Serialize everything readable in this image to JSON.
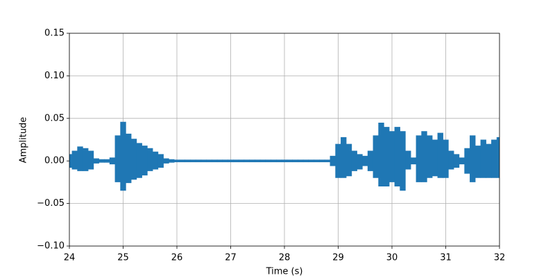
{
  "chart_data": {
    "type": "waveform",
    "xlabel": "Time (s)",
    "ylabel": "Amplitude",
    "color": "#1f77b4",
    "grid": true,
    "xlim": [
      24,
      32
    ],
    "xticks": [
      24,
      25,
      26,
      27,
      28,
      29,
      30,
      31,
      32
    ],
    "ylim": [
      -0.1,
      0.15
    ],
    "yticks": [
      {
        "value": -0.1,
        "label": "−0.10"
      },
      {
        "value": -0.05,
        "label": "−0.05"
      },
      {
        "value": 0,
        "label": "0.00"
      },
      0.05,
      {
        "value": 0.1,
        "label": "0.10"
      },
      0.15
    ],
    "x": [
      24.0,
      24.1,
      24.2,
      24.3,
      24.4,
      24.5,
      24.6,
      24.7,
      24.8,
      24.9,
      25.0,
      25.1,
      25.2,
      25.3,
      25.4,
      25.5,
      25.6,
      25.7,
      25.8,
      25.9,
      26.0,
      26.1,
      26.2,
      26.3,
      26.4,
      26.5,
      26.6,
      26.7,
      26.8,
      26.9,
      27.0,
      27.1,
      27.2,
      27.3,
      27.4,
      27.5,
      27.6,
      27.7,
      27.8,
      27.9,
      28.0,
      28.1,
      28.2,
      28.3,
      28.4,
      28.5,
      28.6,
      28.7,
      28.8,
      28.9,
      29.0,
      29.1,
      29.2,
      29.3,
      29.4,
      29.5,
      29.6,
      29.7,
      29.8,
      29.9,
      30.0,
      30.1,
      30.2,
      30.3,
      30.4,
      30.5,
      30.6,
      30.7,
      30.8,
      30.9,
      31.0,
      31.1,
      31.2,
      31.3,
      31.4,
      31.5,
      31.6,
      31.7,
      31.8,
      31.9,
      32.0
    ],
    "upper": [
      0.008,
      0.012,
      0.017,
      0.015,
      0.012,
      0.003,
      0.002,
      0.002,
      0.004,
      0.03,
      0.046,
      0.032,
      0.026,
      0.021,
      0.018,
      0.015,
      0.011,
      0.008,
      0.003,
      0.002,
      0.0015,
      0.0015,
      0.0015,
      0.0015,
      0.0015,
      0.0015,
      0.0015,
      0.0015,
      0.0015,
      0.0015,
      0.0015,
      0.0015,
      0.0015,
      0.0015,
      0.0015,
      0.0015,
      0.0015,
      0.0015,
      0.0015,
      0.0015,
      0.0015,
      0.0015,
      0.0015,
      0.0015,
      0.0015,
      0.0015,
      0.0015,
      0.0015,
      0.0015,
      0.006,
      0.02,
      0.028,
      0.02,
      0.012,
      0.008,
      0.006,
      0.012,
      0.03,
      0.045,
      0.04,
      0.035,
      0.04,
      0.035,
      0.012,
      0.004,
      0.03,
      0.035,
      0.03,
      0.025,
      0.033,
      0.025,
      0.012,
      0.008,
      0.004,
      0.015,
      0.03,
      0.018,
      0.025,
      0.02,
      0.025,
      0.028
    ],
    "lower": [
      -0.008,
      -0.01,
      -0.012,
      -0.012,
      -0.01,
      -0.003,
      -0.002,
      -0.002,
      -0.004,
      -0.025,
      -0.035,
      -0.026,
      -0.022,
      -0.02,
      -0.017,
      -0.012,
      -0.01,
      -0.008,
      -0.003,
      -0.002,
      -0.0015,
      -0.0015,
      -0.0015,
      -0.0015,
      -0.0015,
      -0.0015,
      -0.0015,
      -0.0015,
      -0.0015,
      -0.0015,
      -0.0015,
      -0.0015,
      -0.0015,
      -0.0015,
      -0.0015,
      -0.0015,
      -0.0015,
      -0.0015,
      -0.0015,
      -0.0015,
      -0.0015,
      -0.0015,
      -0.0015,
      -0.0015,
      -0.0015,
      -0.0015,
      -0.0015,
      -0.0015,
      -0.0015,
      -0.006,
      -0.02,
      -0.02,
      -0.018,
      -0.012,
      -0.01,
      -0.006,
      -0.012,
      -0.02,
      -0.03,
      -0.03,
      -0.025,
      -0.03,
      -0.035,
      -0.01,
      -0.004,
      -0.025,
      -0.025,
      -0.02,
      -0.018,
      -0.02,
      -0.02,
      -0.01,
      -0.008,
      -0.004,
      -0.015,
      -0.025,
      -0.02,
      -0.02,
      -0.02,
      -0.02,
      -0.02
    ]
  }
}
